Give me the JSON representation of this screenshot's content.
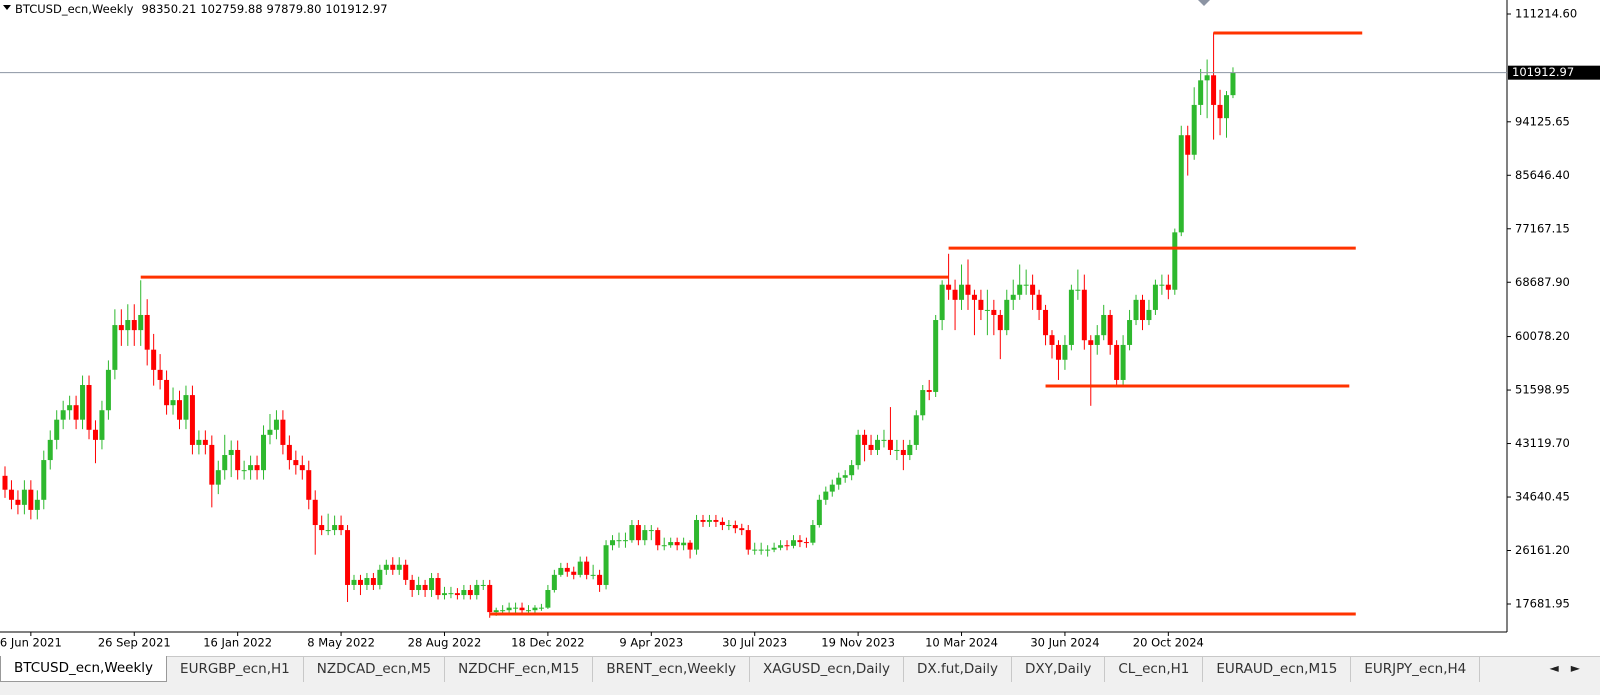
{
  "chart_data": {
    "type": "candlestick",
    "title": "BTCUSD_ecn,Weekly",
    "header_labels": [
      "98350.21",
      "102759.88",
      "97879.80",
      "101912.97"
    ],
    "up_color": "#2eb82e",
    "down_color": "#ff0000",
    "line_color": "#ff3300",
    "price_line_color": "#8c94a3",
    "ylim": [
      13243,
      113434
    ],
    "yticks": [
      {
        "value": 111214.6,
        "label": "111214.60"
      },
      {
        "value": 94125.65,
        "label": "94125.65"
      },
      {
        "value": 85646.4,
        "label": "85646.40"
      },
      {
        "value": 77167.15,
        "label": "77167.15"
      },
      {
        "value": 68687.9,
        "label": "68687.90"
      },
      {
        "value": 60078.2,
        "label": "60078.20"
      },
      {
        "value": 51598.95,
        "label": "51598.95"
      },
      {
        "value": 43119.7,
        "label": "43119.70"
      },
      {
        "value": 34640.45,
        "label": "34640.45"
      },
      {
        "value": 26161.2,
        "label": "26161.20"
      },
      {
        "value": 17681.95,
        "label": "17681.95"
      }
    ],
    "xticks": [
      {
        "value": 4,
        "label": "6 Jun 2021"
      },
      {
        "value": 20,
        "label": "26 Sep 2021"
      },
      {
        "value": 36,
        "label": "16 Jan 2022"
      },
      {
        "value": 52,
        "label": "8 May 2022"
      },
      {
        "value": 68,
        "label": "28 Aug 2022"
      },
      {
        "value": 84,
        "label": "18 Dec 2022"
      },
      {
        "value": 100,
        "label": "9 Apr 2023"
      },
      {
        "value": 116,
        "label": "30 Jul 2023"
      },
      {
        "value": 132,
        "label": "19 Nov 2023"
      },
      {
        "value": 148,
        "label": "10 Mar 2024"
      },
      {
        "value": 164,
        "label": "30 Jun 2024"
      },
      {
        "value": 180,
        "label": "20 Oct 2024"
      }
    ],
    "hlines": [
      {
        "value": 69500,
        "from": 21,
        "to": 146
      },
      {
        "value": 74100,
        "from": 146,
        "to": 209
      },
      {
        "value": 52250,
        "from": 161,
        "to": 208
      },
      {
        "value": 16100,
        "from": 75,
        "to": 209
      },
      {
        "value": 108200,
        "from": 187,
        "to": 210
      }
    ],
    "ohlc": [
      [
        38000,
        39500,
        34500,
        35800
      ],
      [
        35800,
        37300,
        32700,
        34200
      ],
      [
        34200,
        35700,
        31900,
        33400
      ],
      [
        33400,
        37300,
        31900,
        35800
      ],
      [
        35800,
        37300,
        31100,
        32600
      ],
      [
        32600,
        35700,
        31100,
        34200
      ],
      [
        34200,
        42000,
        32700,
        40500
      ],
      [
        40500,
        45200,
        39000,
        43700
      ],
      [
        43700,
        48400,
        42200,
        46900
      ],
      [
        46900,
        49900,
        45400,
        48400
      ],
      [
        48400,
        50700,
        46900,
        49200
      ],
      [
        49200,
        50700,
        45400,
        46900
      ],
      [
        46900,
        53900,
        45400,
        52400
      ],
      [
        52400,
        53900,
        43800,
        45300
      ],
      [
        45300,
        46800,
        40000,
        43700
      ],
      [
        43700,
        49900,
        42200,
        48400
      ],
      [
        48400,
        56300,
        46900,
        54800
      ],
      [
        54800,
        64400,
        53300,
        61900
      ],
      [
        61900,
        64400,
        58600,
        61100
      ],
      [
        61100,
        65200,
        58600,
        62700
      ],
      [
        62700,
        65200,
        58600,
        61100
      ],
      [
        61100,
        69000,
        58600,
        63500
      ],
      [
        63500,
        66000,
        55500,
        58000
      ],
      [
        58000,
        60500,
        52300,
        54800
      ],
      [
        54800,
        57300,
        51700,
        53200
      ],
      [
        53200,
        54700,
        47700,
        49200
      ],
      [
        49200,
        52000,
        47700,
        50000
      ],
      [
        50000,
        51500,
        45400,
        46900
      ],
      [
        46900,
        52300,
        45400,
        50800
      ],
      [
        50800,
        52300,
        41400,
        42900
      ],
      [
        42900,
        45200,
        41400,
        43700
      ],
      [
        43700,
        45200,
        41400,
        42900
      ],
      [
        42900,
        44400,
        33000,
        36600
      ],
      [
        36600,
        40400,
        35100,
        38900
      ],
      [
        38900,
        44500,
        37400,
        41300
      ],
      [
        41300,
        43600,
        37800,
        42100
      ],
      [
        42100,
        43600,
        37400,
        38900
      ],
      [
        38900,
        40400,
        37400,
        38900
      ],
      [
        38900,
        41200,
        37400,
        39700
      ],
      [
        39700,
        41200,
        37400,
        38900
      ],
      [
        38900,
        46000,
        37400,
        44500
      ],
      [
        44500,
        47800,
        43000,
        45300
      ],
      [
        45300,
        48400,
        43800,
        46900
      ],
      [
        46900,
        48400,
        41400,
        42900
      ],
      [
        42900,
        44400,
        39000,
        40500
      ],
      [
        40500,
        42000,
        38200,
        39700
      ],
      [
        39700,
        41200,
        37400,
        38900
      ],
      [
        38900,
        40400,
        32700,
        34200
      ],
      [
        34200,
        35700,
        25500,
        30200
      ],
      [
        30200,
        31700,
        28600,
        29400
      ],
      [
        29400,
        32000,
        28600,
        29400
      ],
      [
        29400,
        31700,
        28600,
        30200
      ],
      [
        30200,
        31700,
        28600,
        29400
      ],
      [
        29400,
        30200,
        18000,
        20700
      ],
      [
        20700,
        22300,
        19900,
        21500
      ],
      [
        21500,
        22300,
        19100,
        20700
      ],
      [
        20700,
        22600,
        19900,
        21800
      ],
      [
        21800,
        22600,
        19900,
        20700
      ],
      [
        20700,
        23900,
        20000,
        23100
      ],
      [
        23100,
        24700,
        22300,
        23900
      ],
      [
        23900,
        25100,
        22300,
        23100
      ],
      [
        23100,
        25100,
        22300,
        23900
      ],
      [
        23900,
        24700,
        20700,
        21500
      ],
      [
        21500,
        22300,
        18800,
        19900
      ],
      [
        19900,
        22000,
        19100,
        20700
      ],
      [
        20700,
        21500,
        18800,
        19900
      ],
      [
        19900,
        22600,
        18800,
        21800
      ],
      [
        21800,
        22600,
        18400,
        19100
      ],
      [
        19100,
        20400,
        18400,
        19400
      ],
      [
        19400,
        20400,
        18600,
        19400
      ],
      [
        19400,
        20200,
        18400,
        19100
      ],
      [
        19100,
        20700,
        18400,
        19900
      ],
      [
        19900,
        20700,
        18400,
        19100
      ],
      [
        19100,
        21500,
        18400,
        20700
      ],
      [
        20700,
        21500,
        19900,
        20700
      ],
      [
        20700,
        21500,
        15500,
        16400
      ],
      [
        16400,
        17100,
        15800,
        16700
      ],
      [
        16700,
        17500,
        15900,
        16700
      ],
      [
        16700,
        17900,
        16300,
        17100
      ],
      [
        17100,
        17900,
        16300,
        17100
      ],
      [
        17100,
        17900,
        16300,
        16700
      ],
      [
        16700,
        17500,
        16300,
        16700
      ],
      [
        16700,
        17500,
        16300,
        17100
      ],
      [
        17100,
        17700,
        16600,
        17100
      ],
      [
        17100,
        20700,
        16900,
        19900
      ],
      [
        19900,
        23100,
        19500,
        22300
      ],
      [
        22300,
        24200,
        22000,
        23400
      ],
      [
        23400,
        24200,
        22000,
        22800
      ],
      [
        22800,
        23600,
        21600,
        22300
      ],
      [
        22300,
        25200,
        21900,
        24400
      ],
      [
        24400,
        25200,
        21600,
        22300
      ],
      [
        22300,
        23900,
        21600,
        22300
      ],
      [
        22300,
        23100,
        19600,
        20700
      ],
      [
        20700,
        27800,
        20000,
        27000
      ],
      [
        27000,
        28600,
        26200,
        27800
      ],
      [
        27800,
        29000,
        26600,
        27800
      ],
      [
        27800,
        29000,
        26600,
        27800
      ],
      [
        27800,
        31000,
        27400,
        30200
      ],
      [
        30200,
        31000,
        27000,
        27800
      ],
      [
        27800,
        30200,
        27000,
        29400
      ],
      [
        29400,
        30200,
        27800,
        29400
      ],
      [
        29400,
        29800,
        26200,
        27000
      ],
      [
        27000,
        28200,
        26200,
        27000
      ],
      [
        27000,
        28200,
        26600,
        27500
      ],
      [
        27500,
        28200,
        26200,
        27000
      ],
      [
        27000,
        28200,
        26200,
        27400
      ],
      [
        27400,
        27800,
        24900,
        26300
      ],
      [
        26300,
        31800,
        25500,
        31000
      ],
      [
        31000,
        31800,
        29900,
        30700
      ],
      [
        30700,
        31800,
        29900,
        31000
      ],
      [
        31000,
        31800,
        29900,
        30700
      ],
      [
        30700,
        31400,
        29400,
        30200
      ],
      [
        30200,
        31000,
        29400,
        30200
      ],
      [
        30200,
        30900,
        28900,
        29700
      ],
      [
        29700,
        30400,
        28600,
        29400
      ],
      [
        29400,
        30200,
        25500,
        26300
      ],
      [
        26300,
        27400,
        25500,
        26300
      ],
      [
        26300,
        27400,
        25500,
        26300
      ],
      [
        26300,
        27000,
        25200,
        26300
      ],
      [
        26300,
        27400,
        25900,
        26600
      ],
      [
        26600,
        27800,
        26200,
        27000
      ],
      [
        27000,
        27800,
        26200,
        26900
      ],
      [
        26900,
        28600,
        26500,
        27800
      ],
      [
        27800,
        28600,
        26700,
        27500
      ],
      [
        27500,
        28200,
        26600,
        27400
      ],
      [
        27400,
        31000,
        27000,
        30200
      ],
      [
        30200,
        35000,
        29800,
        34200
      ],
      [
        34200,
        36300,
        33400,
        35500
      ],
      [
        35500,
        37400,
        34700,
        36600
      ],
      [
        36600,
        38500,
        35800,
        37700
      ],
      [
        37700,
        38900,
        36900,
        38100
      ],
      [
        38100,
        40500,
        37300,
        39700
      ],
      [
        39700,
        45300,
        39000,
        44500
      ],
      [
        44500,
        45300,
        40300,
        42900
      ],
      [
        42900,
        44500,
        41300,
        42100
      ],
      [
        42100,
        44500,
        41300,
        43700
      ],
      [
        43700,
        45300,
        42500,
        43700
      ],
      [
        43700,
        48900,
        41300,
        42100
      ],
      [
        42100,
        43700,
        40500,
        42100
      ],
      [
        42100,
        43700,
        38900,
        41300
      ],
      [
        41300,
        43700,
        40500,
        42900
      ],
      [
        42900,
        48400,
        42100,
        47600
      ],
      [
        47600,
        52400,
        46800,
        51600
      ],
      [
        51600,
        53200,
        50000,
        51300
      ],
      [
        51300,
        63500,
        50500,
        62700
      ],
      [
        62700,
        69000,
        61100,
        68300
      ],
      [
        68300,
        73200,
        65900,
        67500
      ],
      [
        67500,
        69100,
        61100,
        65900
      ],
      [
        65900,
        71500,
        64300,
        68300
      ],
      [
        68300,
        72300,
        64300,
        66700
      ],
      [
        66700,
        67500,
        60300,
        65900
      ],
      [
        65900,
        67500,
        62700,
        64300
      ],
      [
        64300,
        67500,
        60300,
        64300
      ],
      [
        64300,
        65900,
        60300,
        63500
      ],
      [
        63500,
        64300,
        56500,
        61100
      ],
      [
        61100,
        67500,
        60300,
        65900
      ],
      [
        65900,
        69100,
        64300,
        66700
      ],
      [
        66700,
        71500,
        65900,
        68300
      ],
      [
        68300,
        70700,
        66700,
        68300
      ],
      [
        68300,
        69900,
        64300,
        66700
      ],
      [
        66700,
        67500,
        62700,
        64300
      ],
      [
        64300,
        65100,
        58700,
        60300
      ],
      [
        60300,
        61100,
        56600,
        58750
      ],
      [
        58750,
        59500,
        53200,
        56400
      ],
      [
        56400,
        60300,
        54800,
        58750
      ],
      [
        58750,
        68300,
        57900,
        67500
      ],
      [
        67500,
        70700,
        65900,
        67500
      ],
      [
        67500,
        69900,
        58000,
        59500
      ],
      [
        59500,
        60300,
        49100,
        58750
      ],
      [
        58750,
        61900,
        57200,
        60300
      ],
      [
        60300,
        65100,
        59500,
        63500
      ],
      [
        63500,
        64300,
        57200,
        58750
      ],
      [
        58750,
        59500,
        52400,
        53200
      ],
      [
        53200,
        60300,
        52400,
        58750
      ],
      [
        58750,
        64300,
        57900,
        62700
      ],
      [
        62700,
        66700,
        61900,
        65900
      ],
      [
        65900,
        66700,
        61100,
        62700
      ],
      [
        62700,
        65900,
        61900,
        64300
      ],
      [
        64300,
        69100,
        63500,
        68300
      ],
      [
        68300,
        69900,
        66700,
        68300
      ],
      [
        68300,
        69900,
        66000,
        67500
      ],
      [
        67500,
        77200,
        66700,
        76600
      ],
      [
        76600,
        93500,
        76000,
        92000
      ],
      [
        92000,
        93500,
        85600,
        88900
      ],
      [
        88900,
        99600,
        88100,
        96800
      ],
      [
        96800,
        102500,
        95200,
        100700
      ],
      [
        100700,
        104000,
        94700,
        101500
      ],
      [
        101500,
        108300,
        91300,
        96800
      ],
      [
        96800,
        99200,
        92000,
        94700
      ],
      [
        94700,
        99000,
        91600,
        98350.21
      ],
      [
        98350.21,
        102759.88,
        97879.8,
        101912.97
      ]
    ]
  },
  "tabs": [
    "BTCUSD_ecn,Weekly",
    "EURGBP_ecn,H1",
    "NZDCAD_ecn,M5",
    "NZDCHF_ecn,M15",
    "BRENT_ecn,Weekly",
    "XAGUSD_ecn,Daily",
    "DX.fut,Daily",
    "DXY,Daily",
    "CL_ecn,H1",
    "EURAUD_ecn,M15",
    "EURJPY_ecn,H4"
  ]
}
